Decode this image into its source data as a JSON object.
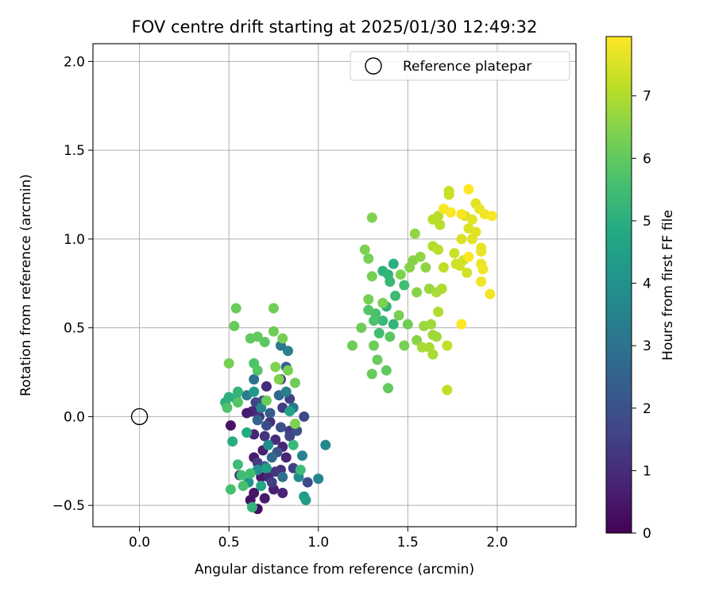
{
  "chart_data": {
    "type": "scatter",
    "title": "FOV centre drift starting at 2025/01/30 12:49:32",
    "xlabel": "Angular distance from reference (arcmin)",
    "ylabel": "Rotation from reference (arcmin)",
    "xlim": [
      -0.26,
      2.44
    ],
    "ylim": [
      -0.62,
      2.1
    ],
    "xticks": [
      0.0,
      0.5,
      1.0,
      1.5,
      2.0
    ],
    "xtick_labels": [
      "0.0",
      "0.5",
      "1.0",
      "1.5",
      "2.0"
    ],
    "yticks": [
      -0.5,
      0.0,
      0.5,
      1.0,
      1.5,
      2.0
    ],
    "ytick_labels": [
      "−0.5",
      "0.0",
      "0.5",
      "1.0",
      "1.5",
      "2.0"
    ],
    "grid": true,
    "legend": {
      "placement": "upper-right",
      "entries": [
        "Reference platepar"
      ]
    },
    "reference_point": {
      "x": 0.0,
      "y": 0.0,
      "label": "Reference platepar"
    },
    "colorbar": {
      "label": "Hours from first FF file",
      "min": 0,
      "max": 7.95,
      "ticks": [
        0,
        1,
        2,
        3,
        4,
        5,
        6,
        7
      ],
      "tick_labels": [
        "0",
        "1",
        "2",
        "3",
        "4",
        "5",
        "6",
        "7"
      ],
      "colormap": "viridis"
    },
    "series": [
      {
        "points": [
          {
            "x": 0.66,
            "y": -0.52,
            "h": 0.3
          },
          {
            "x": 0.62,
            "y": -0.47,
            "h": 0.4
          },
          {
            "x": 0.64,
            "y": -0.43,
            "h": 0.5
          },
          {
            "x": 0.7,
            "y": -0.46,
            "h": 0.6
          },
          {
            "x": 0.75,
            "y": -0.41,
            "h": 0.7
          },
          {
            "x": 0.8,
            "y": -0.43,
            "h": 0.8
          },
          {
            "x": 0.68,
            "y": -0.34,
            "h": 0.5
          },
          {
            "x": 0.72,
            "y": -0.34,
            "h": 0.9
          },
          {
            "x": 0.56,
            "y": -0.33,
            "h": 1.0
          },
          {
            "x": 0.64,
            "y": -0.23,
            "h": 0.6
          },
          {
            "x": 0.69,
            "y": -0.19,
            "h": 0.7
          },
          {
            "x": 0.79,
            "y": -0.3,
            "h": 1.1
          },
          {
            "x": 0.82,
            "y": -0.23,
            "h": 0.8
          },
          {
            "x": 0.8,
            "y": -0.17,
            "h": 0.9
          },
          {
            "x": 0.64,
            "y": -0.1,
            "h": 0.8
          },
          {
            "x": 0.7,
            "y": -0.11,
            "h": 1.2
          },
          {
            "x": 0.76,
            "y": -0.13,
            "h": 1.0
          },
          {
            "x": 0.84,
            "y": -0.08,
            "h": 1.3
          },
          {
            "x": 0.73,
            "y": -0.03,
            "h": 1.1
          },
          {
            "x": 0.67,
            "y": 0.0,
            "h": 1.2
          },
          {
            "x": 0.8,
            "y": 0.05,
            "h": 1.4
          },
          {
            "x": 0.84,
            "y": 0.1,
            "h": 1.5
          },
          {
            "x": 0.63,
            "y": 0.03,
            "h": 0.9
          },
          {
            "x": 0.51,
            "y": -0.05,
            "h": 0.4
          },
          {
            "x": 0.6,
            "y": 0.02,
            "h": 0.6
          },
          {
            "x": 0.65,
            "y": 0.08,
            "h": 1.6
          },
          {
            "x": 0.71,
            "y": 0.17,
            "h": 1.0
          },
          {
            "x": 0.79,
            "y": 0.21,
            "h": 1.2
          },
          {
            "x": 0.76,
            "y": -0.31,
            "h": 1.3
          },
          {
            "x": 0.84,
            "y": -0.11,
            "h": 1.6
          },
          {
            "x": 0.66,
            "y": -0.26,
            "h": 1.4
          },
          {
            "x": 0.74,
            "y": -0.37,
            "h": 1.5
          },
          {
            "x": 0.86,
            "y": -0.29,
            "h": 1.5
          },
          {
            "x": 0.71,
            "y": -0.05,
            "h": 1.8
          },
          {
            "x": 0.79,
            "y": -0.06,
            "h": 1.9
          },
          {
            "x": 0.88,
            "y": -0.08,
            "h": 2.0
          },
          {
            "x": 0.69,
            "y": 0.09,
            "h": 2.0
          },
          {
            "x": 0.77,
            "y": -0.2,
            "h": 2.1
          },
          {
            "x": 0.92,
            "y": 0.0,
            "h": 1.7
          },
          {
            "x": 0.94,
            "y": -0.37,
            "h": 1.8
          },
          {
            "x": 0.7,
            "y": -0.28,
            "h": 2.2
          },
          {
            "x": 0.82,
            "y": 0.28,
            "h": 2.4
          },
          {
            "x": 0.73,
            "y": 0.02,
            "h": 2.3
          },
          {
            "x": 0.66,
            "y": -0.02,
            "h": 2.5
          },
          {
            "x": 0.78,
            "y": 0.12,
            "h": 2.6
          },
          {
            "x": 0.74,
            "y": -0.23,
            "h": 2.7
          },
          {
            "x": 0.8,
            "y": -0.34,
            "h": 2.9
          },
          {
            "x": 0.64,
            "y": 0.21,
            "h": 3.0
          },
          {
            "x": 0.86,
            "y": 0.05,
            "h": 3.1
          },
          {
            "x": 0.6,
            "y": 0.12,
            "h": 3.3
          },
          {
            "x": 0.82,
            "y": 0.14,
            "h": 3.4
          },
          {
            "x": 0.91,
            "y": -0.22,
            "h": 3.5
          },
          {
            "x": 1.0,
            "y": -0.35,
            "h": 3.6
          },
          {
            "x": 1.04,
            "y": -0.16,
            "h": 3.7
          },
          {
            "x": 0.89,
            "y": -0.34,
            "h": 3.8
          },
          {
            "x": 0.72,
            "y": -0.16,
            "h": 3.9
          },
          {
            "x": 0.68,
            "y": 0.05,
            "h": 3.6
          },
          {
            "x": 0.79,
            "y": 0.4,
            "h": 3.2
          },
          {
            "x": 0.83,
            "y": 0.37,
            "h": 3.4
          },
          {
            "x": 0.66,
            "y": -0.3,
            "h": 4.0
          },
          {
            "x": 0.61,
            "y": -0.37,
            "h": 4.1
          },
          {
            "x": 0.92,
            "y": -0.45,
            "h": 4.3
          },
          {
            "x": 0.93,
            "y": -0.47,
            "h": 4.4
          },
          {
            "x": 0.71,
            "y": -0.29,
            "h": 4.5
          },
          {
            "x": 0.64,
            "y": 0.14,
            "h": 4.2
          },
          {
            "x": 0.84,
            "y": 0.03,
            "h": 4.6
          },
          {
            "x": 0.68,
            "y": -0.39,
            "h": 4.7
          },
          {
            "x": 0.6,
            "y": -0.09,
            "h": 4.8
          },
          {
            "x": 0.52,
            "y": -0.14,
            "h": 4.9
          },
          {
            "x": 0.48,
            "y": 0.08,
            "h": 5.0
          },
          {
            "x": 0.54,
            "y": 0.1,
            "h": 5.1
          },
          {
            "x": 0.5,
            "y": 0.11,
            "h": 5.0
          },
          {
            "x": 0.55,
            "y": 0.14,
            "h": 5.2
          },
          {
            "x": 0.86,
            "y": -0.16,
            "h": 5.3
          },
          {
            "x": 0.9,
            "y": -0.3,
            "h": 5.4
          },
          {
            "x": 0.55,
            "y": -0.27,
            "h": 5.4
          },
          {
            "x": 0.62,
            "y": -0.32,
            "h": 5.5
          },
          {
            "x": 0.57,
            "y": -0.33,
            "h": 5.5
          },
          {
            "x": 0.51,
            "y": -0.41,
            "h": 5.6
          },
          {
            "x": 0.58,
            "y": -0.39,
            "h": 5.6
          },
          {
            "x": 0.63,
            "y": -0.51,
            "h": 5.2
          },
          {
            "x": 0.49,
            "y": 0.05,
            "h": 5.7
          },
          {
            "x": 0.55,
            "y": 0.08,
            "h": 5.8
          },
          {
            "x": 0.64,
            "y": 0.3,
            "h": 5.7
          },
          {
            "x": 0.66,
            "y": 0.26,
            "h": 5.8
          },
          {
            "x": 0.7,
            "y": 0.42,
            "h": 5.9
          },
          {
            "x": 0.66,
            "y": 0.45,
            "h": 6.0
          },
          {
            "x": 0.62,
            "y": 0.44,
            "h": 6.0
          },
          {
            "x": 0.53,
            "y": 0.51,
            "h": 6.1
          },
          {
            "x": 0.54,
            "y": 0.61,
            "h": 6.1
          },
          {
            "x": 0.75,
            "y": 0.61,
            "h": 6.2
          },
          {
            "x": 0.75,
            "y": 0.48,
            "h": 6.2
          },
          {
            "x": 0.8,
            "y": 0.44,
            "h": 6.3
          },
          {
            "x": 0.5,
            "y": 0.3,
            "h": 6.3
          },
          {
            "x": 0.76,
            "y": 0.28,
            "h": 6.4
          },
          {
            "x": 0.78,
            "y": 0.21,
            "h": 6.4
          },
          {
            "x": 0.83,
            "y": 0.26,
            "h": 6.3
          },
          {
            "x": 0.87,
            "y": 0.19,
            "h": 6.2
          },
          {
            "x": 0.87,
            "y": -0.04,
            "h": 6.4
          },
          {
            "x": 0.71,
            "y": 0.09,
            "h": 6.1
          },
          {
            "x": 1.36,
            "y": 0.82,
            "h": 5.1
          },
          {
            "x": 1.39,
            "y": 0.8,
            "h": 5.2
          },
          {
            "x": 1.42,
            "y": 0.86,
            "h": 5.0
          },
          {
            "x": 1.4,
            "y": 0.76,
            "h": 5.3
          },
          {
            "x": 1.38,
            "y": 0.62,
            "h": 5.1
          },
          {
            "x": 1.42,
            "y": 0.52,
            "h": 5.2
          },
          {
            "x": 1.36,
            "y": 0.54,
            "h": 5.3
          },
          {
            "x": 1.43,
            "y": 0.68,
            "h": 5.4
          },
          {
            "x": 1.48,
            "y": 0.74,
            "h": 5.5
          },
          {
            "x": 1.32,
            "y": 0.58,
            "h": 5.6
          },
          {
            "x": 1.28,
            "y": 0.6,
            "h": 5.8
          },
          {
            "x": 1.31,
            "y": 0.54,
            "h": 5.7
          },
          {
            "x": 1.34,
            "y": 0.47,
            "h": 5.5
          },
          {
            "x": 1.4,
            "y": 0.45,
            "h": 5.9
          },
          {
            "x": 1.38,
            "y": 0.26,
            "h": 6.0
          },
          {
            "x": 1.39,
            "y": 0.16,
            "h": 6.0
          },
          {
            "x": 1.3,
            "y": 0.24,
            "h": 6.1
          },
          {
            "x": 1.33,
            "y": 0.32,
            "h": 6.1
          },
          {
            "x": 1.31,
            "y": 0.4,
            "h": 6.2
          },
          {
            "x": 1.24,
            "y": 0.5,
            "h": 6.2
          },
          {
            "x": 1.19,
            "y": 0.4,
            "h": 6.2
          },
          {
            "x": 1.28,
            "y": 0.66,
            "h": 6.3
          },
          {
            "x": 1.3,
            "y": 0.79,
            "h": 6.3
          },
          {
            "x": 1.28,
            "y": 0.89,
            "h": 6.3
          },
          {
            "x": 1.26,
            "y": 0.94,
            "h": 6.4
          },
          {
            "x": 1.3,
            "y": 1.12,
            "h": 6.4
          },
          {
            "x": 1.36,
            "y": 0.64,
            "h": 6.4
          },
          {
            "x": 1.45,
            "y": 0.57,
            "h": 6.3
          },
          {
            "x": 1.5,
            "y": 0.52,
            "h": 6.2
          },
          {
            "x": 1.48,
            "y": 0.4,
            "h": 6.3
          },
          {
            "x": 1.55,
            "y": 0.43,
            "h": 6.5
          },
          {
            "x": 1.46,
            "y": 0.8,
            "h": 6.4
          },
          {
            "x": 1.51,
            "y": 0.84,
            "h": 6.5
          },
          {
            "x": 1.53,
            "y": 0.88,
            "h": 6.5
          },
          {
            "x": 1.54,
            "y": 1.03,
            "h": 6.6
          },
          {
            "x": 1.57,
            "y": 0.9,
            "h": 6.6
          },
          {
            "x": 1.6,
            "y": 0.84,
            "h": 6.6
          },
          {
            "x": 1.62,
            "y": 0.72,
            "h": 6.7
          },
          {
            "x": 1.55,
            "y": 0.7,
            "h": 6.5
          },
          {
            "x": 1.59,
            "y": 0.51,
            "h": 6.7
          },
          {
            "x": 1.63,
            "y": 0.52,
            "h": 6.8
          },
          {
            "x": 1.64,
            "y": 0.46,
            "h": 6.8
          },
          {
            "x": 1.66,
            "y": 0.45,
            "h": 6.8
          },
          {
            "x": 1.62,
            "y": 0.39,
            "h": 6.9
          },
          {
            "x": 1.64,
            "y": 0.35,
            "h": 6.9
          },
          {
            "x": 1.58,
            "y": 0.39,
            "h": 6.9
          },
          {
            "x": 1.67,
            "y": 0.59,
            "h": 7.0
          },
          {
            "x": 1.69,
            "y": 0.72,
            "h": 7.0
          },
          {
            "x": 1.66,
            "y": 0.7,
            "h": 6.9
          },
          {
            "x": 1.64,
            "y": 0.96,
            "h": 7.0
          },
          {
            "x": 1.67,
            "y": 0.94,
            "h": 7.1
          },
          {
            "x": 1.68,
            "y": 1.08,
            "h": 7.1
          },
          {
            "x": 1.64,
            "y": 1.11,
            "h": 7.1
          },
          {
            "x": 1.67,
            "y": 1.13,
            "h": 7.1
          },
          {
            "x": 1.72,
            "y": 0.15,
            "h": 7.2
          },
          {
            "x": 1.72,
            "y": 0.4,
            "h": 7.2
          },
          {
            "x": 1.7,
            "y": 0.84,
            "h": 7.2
          },
          {
            "x": 1.73,
            "y": 1.25,
            "h": 7.3
          },
          {
            "x": 1.73,
            "y": 1.27,
            "h": 7.3
          },
          {
            "x": 1.76,
            "y": 0.92,
            "h": 7.3
          },
          {
            "x": 1.77,
            "y": 0.86,
            "h": 7.4
          },
          {
            "x": 1.79,
            "y": 0.85,
            "h": 7.4
          },
          {
            "x": 1.81,
            "y": 0.88,
            "h": 7.4
          },
          {
            "x": 1.83,
            "y": 0.81,
            "h": 7.4
          },
          {
            "x": 1.8,
            "y": 1.0,
            "h": 7.5
          },
          {
            "x": 1.82,
            "y": 1.13,
            "h": 7.5
          },
          {
            "x": 1.84,
            "y": 1.06,
            "h": 7.5
          },
          {
            "x": 1.86,
            "y": 1.0,
            "h": 7.6
          },
          {
            "x": 1.86,
            "y": 1.11,
            "h": 7.6
          },
          {
            "x": 1.88,
            "y": 1.04,
            "h": 7.6
          },
          {
            "x": 1.88,
            "y": 1.2,
            "h": 7.6
          },
          {
            "x": 1.9,
            "y": 1.17,
            "h": 7.7
          },
          {
            "x": 1.91,
            "y": 0.95,
            "h": 7.7
          },
          {
            "x": 1.91,
            "y": 0.93,
            "h": 7.7
          },
          {
            "x": 1.91,
            "y": 0.86,
            "h": 7.7
          },
          {
            "x": 1.92,
            "y": 0.83,
            "h": 7.8
          },
          {
            "x": 1.91,
            "y": 0.76,
            "h": 7.8
          },
          {
            "x": 1.96,
            "y": 0.69,
            "h": 7.8
          },
          {
            "x": 1.93,
            "y": 1.14,
            "h": 7.8
          },
          {
            "x": 1.97,
            "y": 1.13,
            "h": 7.9
          },
          {
            "x": 1.8,
            "y": 1.14,
            "h": 7.9
          },
          {
            "x": 1.74,
            "y": 1.15,
            "h": 7.9
          },
          {
            "x": 1.7,
            "y": 1.17,
            "h": 7.9
          },
          {
            "x": 1.84,
            "y": 1.28,
            "h": 7.95
          },
          {
            "x": 1.84,
            "y": 0.9,
            "h": 7.95
          },
          {
            "x": 1.8,
            "y": 0.52,
            "h": 7.95
          }
        ]
      }
    ]
  }
}
